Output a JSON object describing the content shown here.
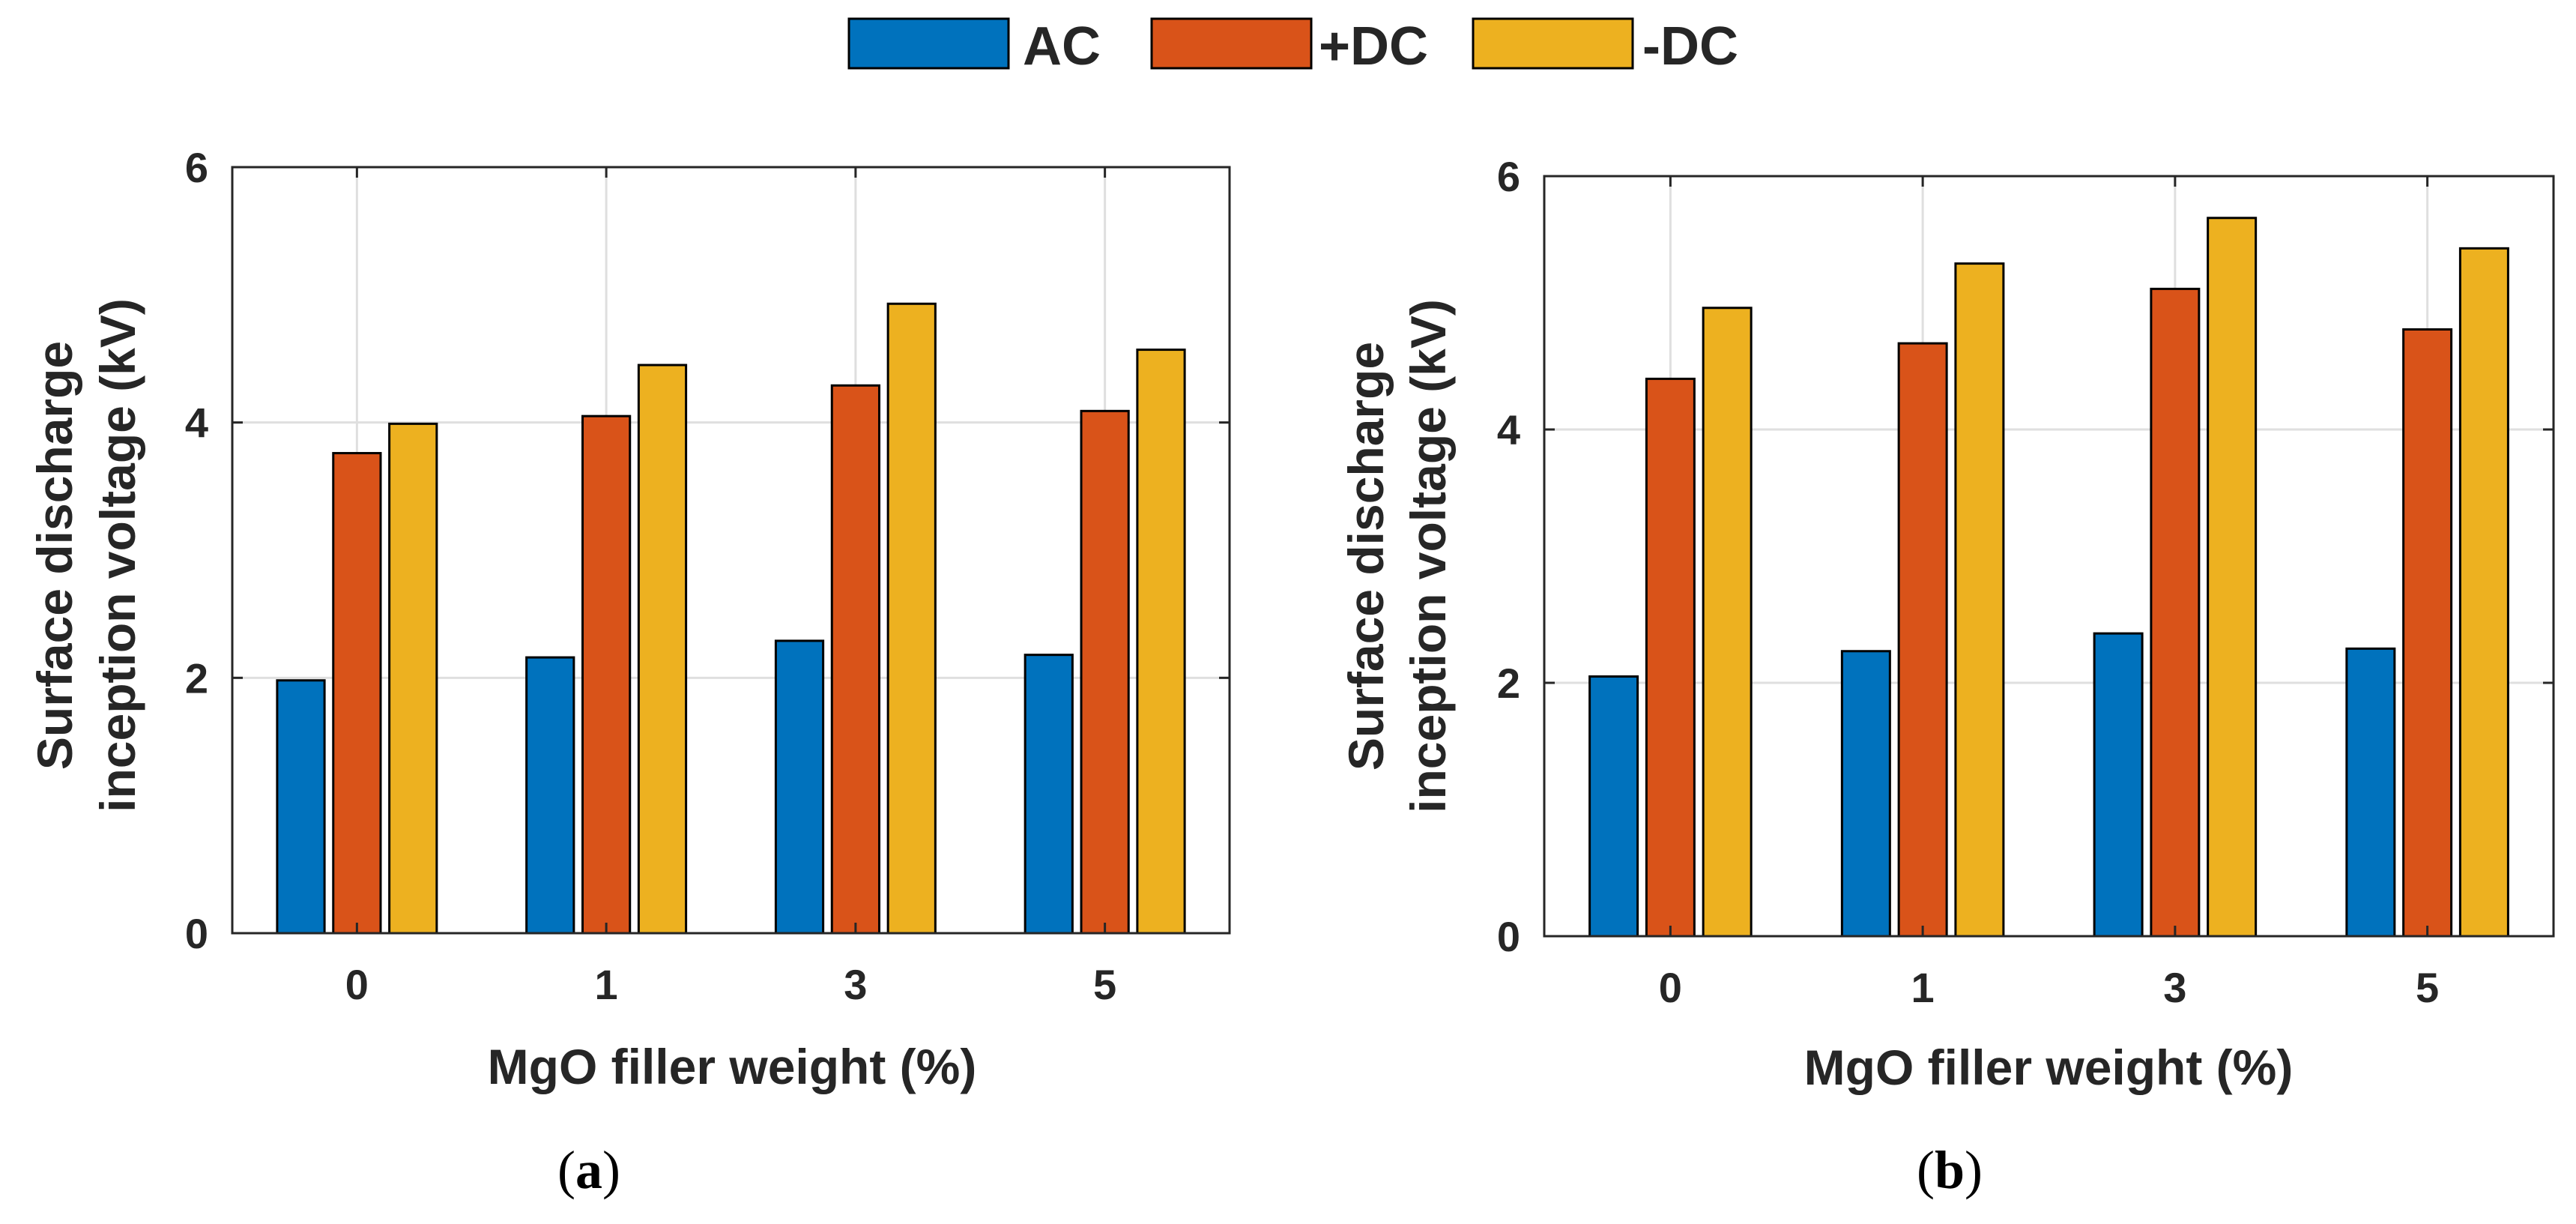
{
  "legend": {
    "entries": [
      {
        "label": "AC",
        "color": "#0072BD"
      },
      {
        "label": "+DC",
        "color": "#D95319"
      },
      {
        "label": "-DC",
        "color": "#EDB120"
      }
    ]
  },
  "chart_data": [
    {
      "type": "bar",
      "panel": "a",
      "caption": {
        "open": "(",
        "letter": "a",
        "close": ")"
      },
      "categories": [
        "0",
        "1",
        "3",
        "5"
      ],
      "series": [
        {
          "name": "AC",
          "color": "#0072BD",
          "values": [
            1.98,
            2.16,
            2.29,
            2.18
          ]
        },
        {
          "name": "+DC",
          "color": "#D95319",
          "values": [
            3.76,
            4.05,
            4.29,
            4.09
          ]
        },
        {
          "name": "-DC",
          "color": "#EDB120",
          "values": [
            3.99,
            4.45,
            4.93,
            4.57
          ]
        }
      ],
      "ylim": [
        0,
        6
      ],
      "yticks": [
        "0",
        "2",
        "4",
        "6"
      ],
      "ytick_values": [
        0,
        2,
        4,
        6
      ],
      "grid": true,
      "xlabel": "MgO filler weight (%)",
      "ylabel_lines": [
        "Surface discharge",
        "inception voltage (kV)"
      ]
    },
    {
      "type": "bar",
      "panel": "b",
      "caption": {
        "open": "(",
        "letter": "b",
        "close": ")"
      },
      "categories": [
        "0",
        "1",
        "3",
        "5"
      ],
      "series": [
        {
          "name": "AC",
          "color": "#0072BD",
          "values": [
            2.05,
            2.25,
            2.39,
            2.27
          ]
        },
        {
          "name": "+DC",
          "color": "#D95319",
          "values": [
            4.4,
            4.68,
            5.11,
            4.79
          ]
        },
        {
          "name": "-DC",
          "color": "#EDB120",
          "values": [
            4.96,
            5.31,
            5.67,
            5.43
          ]
        }
      ],
      "ylim": [
        0,
        6
      ],
      "yticks": [
        "0",
        "2",
        "4",
        "6"
      ],
      "ytick_values": [
        0,
        2,
        4,
        6
      ],
      "grid": true,
      "xlabel": "MgO filler weight (%)",
      "ylabel_lines": [
        "Surface discharge",
        "inception voltage (kV)"
      ]
    }
  ]
}
